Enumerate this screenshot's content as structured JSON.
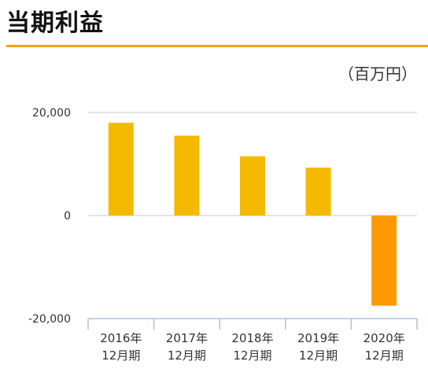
{
  "page": {
    "title": "当期利益",
    "unit": "（百万円）"
  },
  "colors": {
    "accent_rule": "#f5a300",
    "bar_positive": "#f5ba00",
    "bar_negative": "#ff9900",
    "gridline": "#c8c8c8",
    "axis": "#a9c4dc"
  },
  "chart_data": {
    "type": "bar",
    "title": "当期利益",
    "unit": "（百万円）",
    "categories": [
      [
        "2016年",
        "12月期"
      ],
      [
        "2017年",
        "12月期"
      ],
      [
        "2018年",
        "12月期"
      ],
      [
        "2019年",
        "12月期"
      ],
      [
        "2020年",
        "12月期"
      ]
    ],
    "values": [
      18000,
      15500,
      11500,
      9300,
      -17500
    ],
    "ylim": [
      -20000,
      20000
    ],
    "yticks": [
      20000,
      0,
      -20000
    ],
    "ytick_labels": [
      "20,000",
      "0",
      "-20,000"
    ],
    "grid": true,
    "legend": "none"
  }
}
